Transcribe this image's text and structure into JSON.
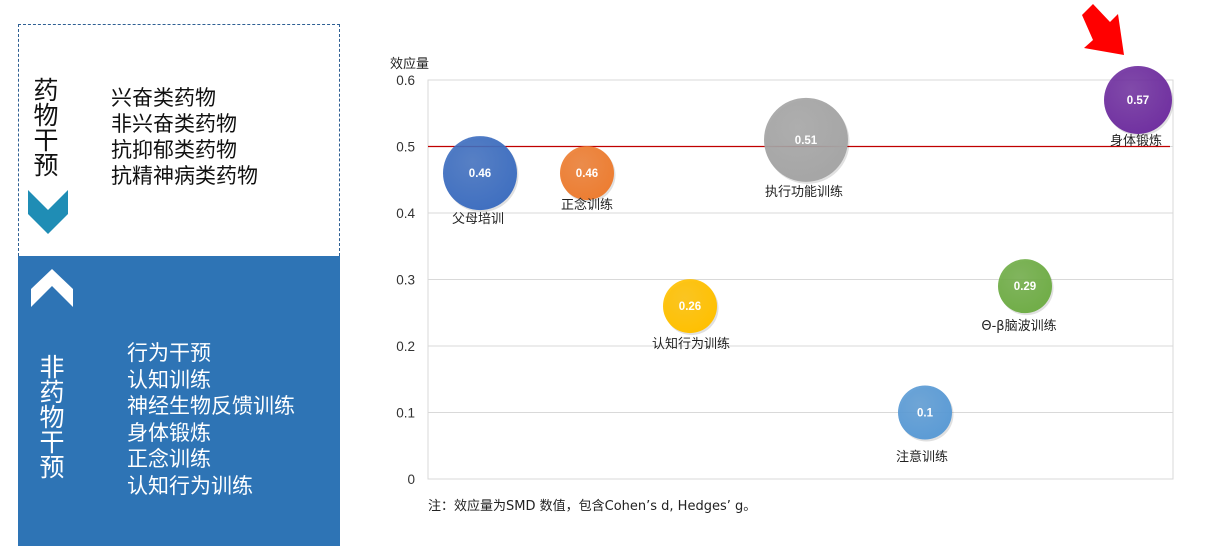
{
  "left_panel": {
    "pharm": {
      "title_chars": [
        "药",
        "物",
        "干",
        "预"
      ],
      "items": [
        "兴奋类药物",
        "非兴奋类药物",
        "抗抑郁类药物",
        "抗精神病类药物"
      ]
    },
    "nonpharm": {
      "title_chars": [
        "非",
        "药",
        "物",
        "干",
        "预"
      ],
      "items": [
        "行为干预",
        "认知训练",
        "神经生物反馈训练",
        "身体锻炼",
        "正念训练",
        "认知行为训练"
      ]
    }
  },
  "colors": {
    "panel_blue": "#2e74b5",
    "chevron_teal": "#1f8db5",
    "reference_line": "#c00000",
    "arrow": "#ff0000"
  },
  "chart_data": {
    "type": "scatter",
    "ylabel": "效应量",
    "ylim": [
      0,
      0.6
    ],
    "yticks": [
      "0",
      "0.1",
      "0.2",
      "0.3",
      "0.4",
      "0.5",
      "0.6"
    ],
    "reference_line_y": 0.5,
    "grid": true,
    "points": [
      {
        "label": "父母培训",
        "value": 0.46,
        "value_text": "0.46",
        "color": "#3f6fc0"
      },
      {
        "label": "正念训练",
        "value": 0.46,
        "value_text": "0.46",
        "color": "#ed7d31"
      },
      {
        "label": "认知行为训练",
        "value": 0.26,
        "value_text": "0.26",
        "color": "#ffc000"
      },
      {
        "label": "执行功能训练",
        "value": 0.51,
        "value_text": "0.51",
        "color": "#a5a5a5"
      },
      {
        "label": "注意训练",
        "value": 0.1,
        "value_text": "0.1",
        "color": "#5b9bd5"
      },
      {
        "label": "Θ-β脑波训练",
        "value": 0.29,
        "value_text": "0.29",
        "color": "#70ad47"
      },
      {
        "label": "身体锻炼",
        "value": 0.57,
        "value_text": "0.57",
        "color": "#7030a0"
      }
    ],
    "highlight": "身体锻炼"
  },
  "note": "注：效应量为SMD 数值，包含Cohen’s d, Hedges’ g。"
}
